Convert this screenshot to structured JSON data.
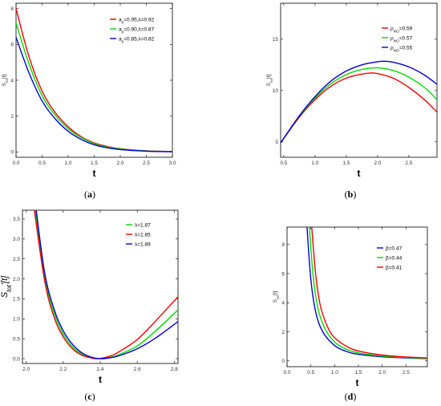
{
  "captions": [
    "a",
    "b",
    "c",
    "d"
  ],
  "chart_data": [
    {
      "id": "a",
      "type": "line",
      "xlabel": "t",
      "ylabel": "S_ex[t]",
      "xlim": [
        0,
        3
      ],
      "ylim": [
        -0.3,
        8.3
      ],
      "xticks": [
        0.0,
        0.5,
        1.0,
        1.5,
        2.0,
        2.5,
        3.0
      ],
      "xtick_labels": [
        "0.0",
        "0.5",
        "1.0",
        "1.5",
        "2.0",
        "2.5",
        "3.0"
      ],
      "yticks": [
        0,
        2,
        4,
        6,
        8
      ],
      "ytick_labels": [
        "0",
        "2",
        "4",
        "6",
        "8"
      ],
      "legend": "top-right",
      "series": [
        {
          "name": "a_0=0.95,λ=0.92",
          "color": "#ff0000",
          "x": [
            0,
            0.25,
            0.5,
            0.75,
            1.0,
            1.25,
            1.5,
            1.75,
            2.0,
            2.5,
            3.0
          ],
          "y": [
            8.0,
            5.3,
            3.4,
            2.2,
            1.4,
            0.85,
            0.5,
            0.3,
            0.18,
            0.06,
            0.02
          ]
        },
        {
          "name": "a_0=0.90,λ=0.87",
          "color": "#00dd00",
          "x": [
            0,
            0.25,
            0.5,
            0.75,
            1.0,
            1.25,
            1.5,
            1.75,
            2.0,
            2.5,
            3.0
          ],
          "y": [
            7.2,
            4.9,
            3.15,
            2.05,
            1.3,
            0.8,
            0.46,
            0.27,
            0.16,
            0.05,
            0.02
          ]
        },
        {
          "name": "a_0=0.85,λ=0.82",
          "color": "#0000dd",
          "x": [
            0,
            0.25,
            0.5,
            0.75,
            1.0,
            1.25,
            1.5,
            1.75,
            2.0,
            2.5,
            3.0
          ],
          "y": [
            6.4,
            4.4,
            2.85,
            1.85,
            1.15,
            0.7,
            0.4,
            0.23,
            0.13,
            0.04,
            0.01
          ]
        }
      ]
    },
    {
      "id": "b",
      "type": "line",
      "xlabel": "t",
      "ylabel": "S_ex[t]",
      "xlim": [
        0.45,
        2.95
      ],
      "ylim": [
        3.5,
        18.5
      ],
      "xticks": [
        0.5,
        1.0,
        1.5,
        2.0,
        2.5
      ],
      "xtick_labels": [
        "0.5",
        "1.0",
        "1.5",
        "2.0",
        "2.5"
      ],
      "yticks": [
        5,
        10,
        15
      ],
      "ytick_labels": [
        "5",
        "10",
        "15"
      ],
      "legend": "top-right",
      "series": [
        {
          "name": "ρ_NO=0.59",
          "color": "#ff0000",
          "x": [
            0.45,
            0.75,
            1.0,
            1.25,
            1.5,
            1.75,
            1.9,
            2.0,
            2.25,
            2.5,
            2.75,
            2.95
          ],
          "y": [
            4.9,
            7.4,
            9.1,
            10.4,
            11.2,
            11.6,
            11.7,
            11.65,
            11.2,
            10.3,
            9.1,
            7.9
          ]
        },
        {
          "name": "ρ_NO=0.57",
          "color": "#00dd00",
          "x": [
            0.45,
            0.75,
            1.0,
            1.25,
            1.5,
            1.75,
            2.0,
            2.25,
            2.5,
            2.75,
            2.95
          ],
          "y": [
            4.9,
            7.5,
            9.25,
            10.65,
            11.55,
            12.05,
            12.2,
            11.95,
            11.3,
            10.3,
            9.1
          ]
        },
        {
          "name": "ρ_NO=0.55",
          "color": "#0000dd",
          "x": [
            0.45,
            0.75,
            1.0,
            1.25,
            1.5,
            1.75,
            2.0,
            2.1,
            2.25,
            2.5,
            2.75,
            2.95
          ],
          "y": [
            4.9,
            7.55,
            9.4,
            10.9,
            11.9,
            12.5,
            12.8,
            12.85,
            12.75,
            12.3,
            11.5,
            10.6
          ]
        }
      ]
    },
    {
      "id": "c",
      "type": "line",
      "xlabel": "t",
      "ylabel": "S_tot'[t]",
      "xlim": [
        1.98,
        2.82
      ],
      "ylim": [
        -0.12,
        3.72
      ],
      "xticks": [
        2.0,
        2.2,
        2.4,
        2.6,
        2.8
      ],
      "xtick_labels": [
        "2.0",
        "2.2",
        "2.4",
        "2.6",
        "2.8"
      ],
      "yticks": [
        0.0,
        0.5,
        1.0,
        1.5,
        2.0,
        2.5,
        3.0,
        3.5
      ],
      "ytick_labels": [
        "0.0",
        "0.5",
        "1.0",
        "1.5",
        "2.0",
        "2.5",
        "3.0",
        "3.5"
      ],
      "legend": "top-right",
      "series": [
        {
          "name": "λ=1.87",
          "color": "#00dd00",
          "x": [
            2.05,
            2.1,
            2.15,
            2.2,
            2.25,
            2.3,
            2.35,
            2.39,
            2.45,
            2.5,
            2.6,
            2.7,
            2.82
          ],
          "y": [
            3.7,
            2.05,
            1.15,
            0.62,
            0.3,
            0.12,
            0.03,
            0.0,
            0.03,
            0.1,
            0.32,
            0.7,
            1.22
          ]
        },
        {
          "name": "λ=1.85",
          "color": "#ff0000",
          "x": [
            2.045,
            2.1,
            2.15,
            2.2,
            2.25,
            2.3,
            2.35,
            2.385,
            2.45,
            2.5,
            2.6,
            2.7,
            2.82
          ],
          "y": [
            3.7,
            1.95,
            1.05,
            0.55,
            0.25,
            0.09,
            0.02,
            0.0,
            0.06,
            0.17,
            0.48,
            0.95,
            1.55
          ]
        },
        {
          "name": "λ=1.89",
          "color": "#0000dd",
          "x": [
            2.055,
            2.1,
            2.15,
            2.2,
            2.25,
            2.3,
            2.35,
            2.4,
            2.45,
            2.5,
            2.6,
            2.7,
            2.82
          ],
          "y": [
            3.7,
            2.15,
            1.25,
            0.7,
            0.36,
            0.15,
            0.04,
            0.0,
            0.02,
            0.07,
            0.25,
            0.52,
            0.93
          ]
        }
      ]
    },
    {
      "id": "d",
      "type": "line",
      "xlabel": "t",
      "ylabel": "S_ex[t]",
      "xlim": [
        0,
        2.95
      ],
      "ylim": [
        -0.4,
        9.2
      ],
      "xticks": [
        0.0,
        0.5,
        1.0,
        1.5,
        2.0,
        2.5
      ],
      "xtick_labels": [
        "0.0",
        "0.5",
        "1.0",
        "1.5",
        "2.0",
        "2.5"
      ],
      "yticks": [
        0,
        2,
        4,
        6,
        8
      ],
      "ytick_labels": [
        "0",
        "2",
        "4",
        "6",
        "8"
      ],
      "legend": "top-right",
      "series": [
        {
          "name": "β=0.47",
          "color": "#0000dd",
          "x": [
            0.42,
            0.5,
            0.6,
            0.75,
            1.0,
            1.25,
            1.5,
            2.0,
            2.5,
            2.95
          ],
          "y": [
            9.2,
            5.6,
            3.4,
            2.0,
            1.05,
            0.65,
            0.45,
            0.28,
            0.2,
            0.15
          ]
        },
        {
          "name": "β=0.44",
          "color": "#00dd00",
          "x": [
            0.47,
            0.55,
            0.65,
            0.8,
            1.0,
            1.25,
            1.5,
            2.0,
            2.5,
            2.95
          ],
          "y": [
            9.2,
            5.8,
            3.6,
            2.2,
            1.3,
            0.8,
            0.55,
            0.33,
            0.23,
            0.17
          ]
        },
        {
          "name": "β=0.41",
          "color": "#ff0000",
          "x": [
            0.52,
            0.6,
            0.7,
            0.85,
            1.0,
            1.25,
            1.5,
            2.0,
            2.5,
            2.95
          ],
          "y": [
            9.2,
            6.0,
            3.8,
            2.35,
            1.6,
            1.0,
            0.68,
            0.4,
            0.27,
            0.2
          ]
        }
      ]
    }
  ]
}
